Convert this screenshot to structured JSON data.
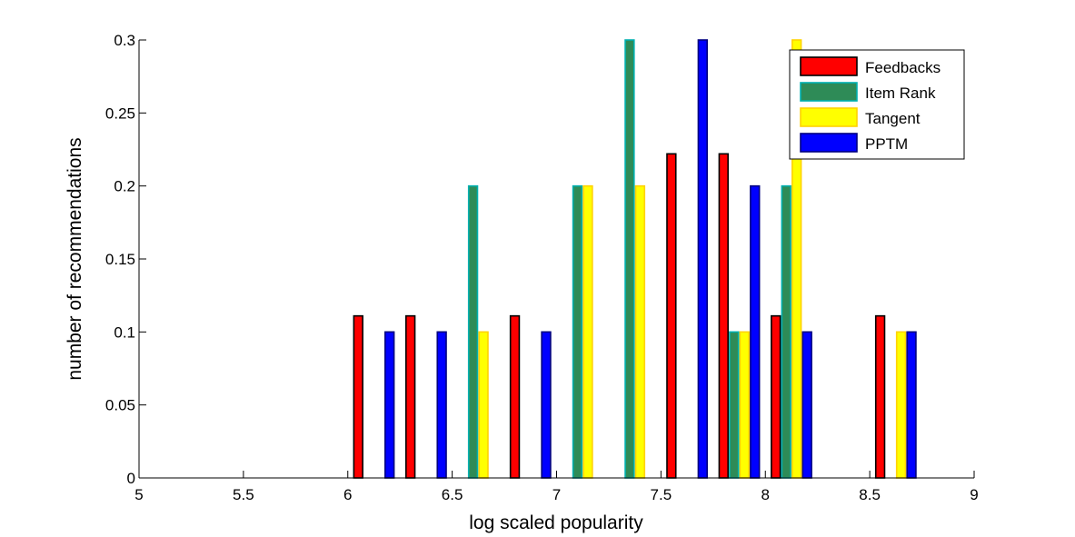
{
  "chart_data": {
    "type": "bar",
    "xlabel": "log scaled popularity",
    "ylabel": "number of recommendations",
    "xlim": [
      5,
      9
    ],
    "ylim": [
      0,
      0.3
    ],
    "xticks": [
      "5",
      "5.5",
      "6",
      "6.5",
      "7",
      "7.5",
      "8",
      "8.5",
      "9"
    ],
    "yticks": [
      "0",
      "0.05",
      "0.1",
      "0.15",
      "0.2",
      "0.25",
      "0.3"
    ],
    "grid": false,
    "legend_position": "top-right",
    "categories": [
      5.125,
      5.375,
      5.625,
      5.875,
      6.125,
      6.375,
      6.625,
      6.875,
      7.125,
      7.375,
      7.625,
      7.875,
      8.125,
      8.375,
      8.625,
      8.875
    ],
    "series": [
      {
        "name": "Feedbacks",
        "color": "#ff0000",
        "edge": "#000000",
        "values": [
          0,
          0,
          0,
          0,
          0.111,
          0.111,
          0,
          0.111,
          0,
          0,
          0.222,
          0.222,
          0.111,
          0,
          0.111,
          0
        ]
      },
      {
        "name": "Item Rank",
        "color": "#2e8b57",
        "edge": "#00b0b0",
        "values": [
          0,
          0,
          0,
          0,
          0,
          0,
          0.2,
          0,
          0.2,
          0.3,
          0,
          0.1,
          0.2,
          0,
          0,
          0
        ]
      },
      {
        "name": "Tangent",
        "color": "#ffff00",
        "edge": "#ffd200",
        "values": [
          0,
          0,
          0,
          0,
          0,
          0,
          0.1,
          0,
          0.2,
          0.2,
          0,
          0.1,
          0.3,
          0,
          0.1,
          0
        ]
      },
      {
        "name": "PPTM",
        "color": "#0000ff",
        "edge": "#000080",
        "values": [
          0,
          0,
          0,
          0,
          0.1,
          0.1,
          0,
          0.1,
          0,
          0,
          0.3,
          0.2,
          0.1,
          0,
          0.1,
          0
        ]
      }
    ]
  }
}
